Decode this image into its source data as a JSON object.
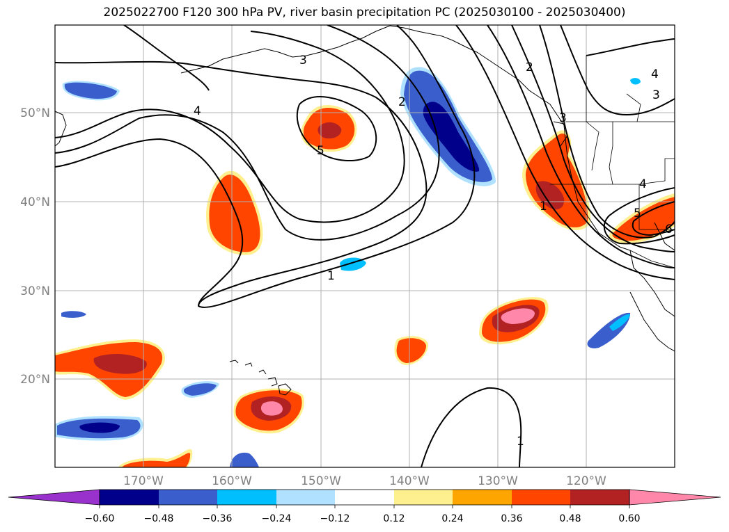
{
  "title": "2025022700 F120 300 hPa PV, river basin precipitation PC (2025030100 - 2025030400)",
  "lat_labels": [
    "50°N",
    "40°N",
    "30°N",
    "20°N"
  ],
  "lon_labels": [
    "170°W",
    "160°W",
    "150°W",
    "140°W",
    "130°W",
    "120°W"
  ],
  "colorbar": {
    "colors": [
      "#9932cc",
      "#00008b",
      "#3a5fcd",
      "#00bfff",
      "#b0e2ff",
      "#ffffff",
      "#fff08f",
      "#ffa500",
      "#ff4500",
      "#b22222",
      "#ff88aa"
    ],
    "tick_labels": [
      "−0.60",
      "−0.48",
      "−0.36",
      "−0.24",
      "−0.12",
      "0.12",
      "0.24",
      "0.36",
      "0.48",
      "0.60"
    ]
  },
  "contour_labels": [
    "3",
    "4",
    "4",
    "3",
    "2",
    "2",
    "3",
    "5",
    "1",
    "1",
    "1",
    "4",
    "5",
    "6"
  ]
}
